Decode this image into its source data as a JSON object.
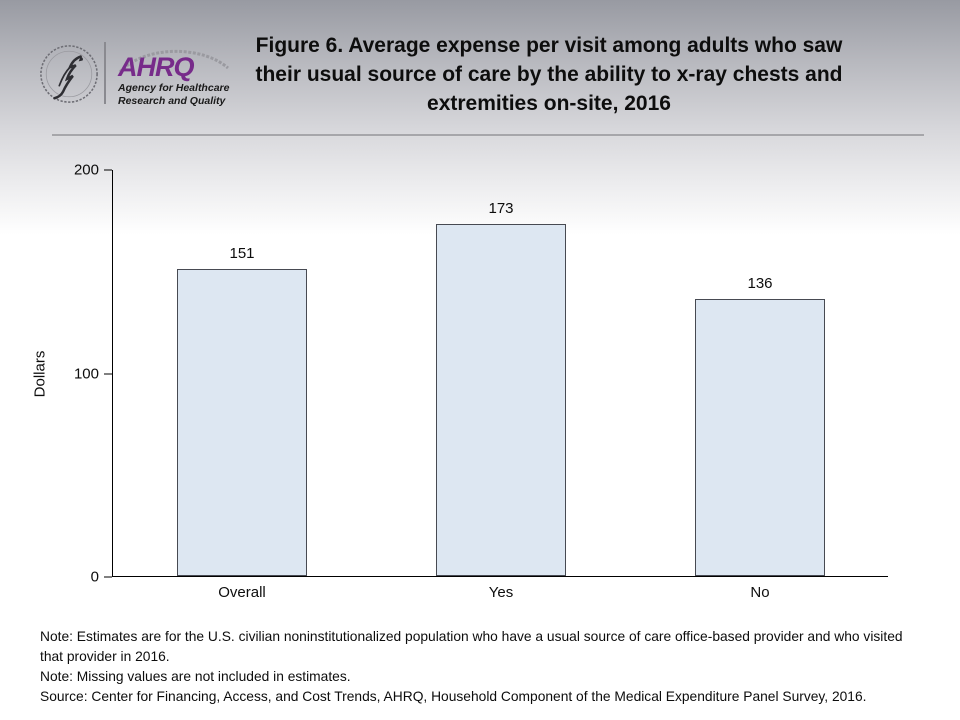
{
  "header": {
    "logo": {
      "ahrq_acronym": "AHRQ",
      "tagline_line1": "Agency for Healthcare",
      "tagline_line2": "Research and Quality"
    },
    "title_lines": [
      "Figure 6. Average expense per visit among adults who saw",
      "their usual source of care by the ability to x-ray chests and",
      "extremities on-site, 2016"
    ]
  },
  "chart_data": {
    "type": "bar",
    "title": "Figure 6. Average expense per visit among adults who saw their usual source of care by the ability to x-ray chests and extremities on-site, 2016",
    "categories": [
      "Overall",
      "Yes",
      "No"
    ],
    "values": [
      151,
      173,
      136
    ],
    "xlabel": "",
    "ylabel": "Dollars",
    "ylim": [
      0,
      200
    ],
    "yticks": [
      0,
      100,
      200
    ],
    "grid": false,
    "legend": false,
    "bar_fill": "#dde7f2",
    "bar_border": "#474a52",
    "value_labels": [
      "151",
      "173",
      "136"
    ]
  },
  "footnotes": {
    "note1": "Note: Estimates are for the U.S. civilian noninstitutionalized population who have a usual source of care office-based provider and who visited that provider in 2016.",
    "note2": "Note: Missing values are not included in estimates.",
    "source": "Source: Center for Financing, Access, and Cost Trends, AHRQ, Household Component of the Medical Expenditure Panel Survey, 2016."
  }
}
